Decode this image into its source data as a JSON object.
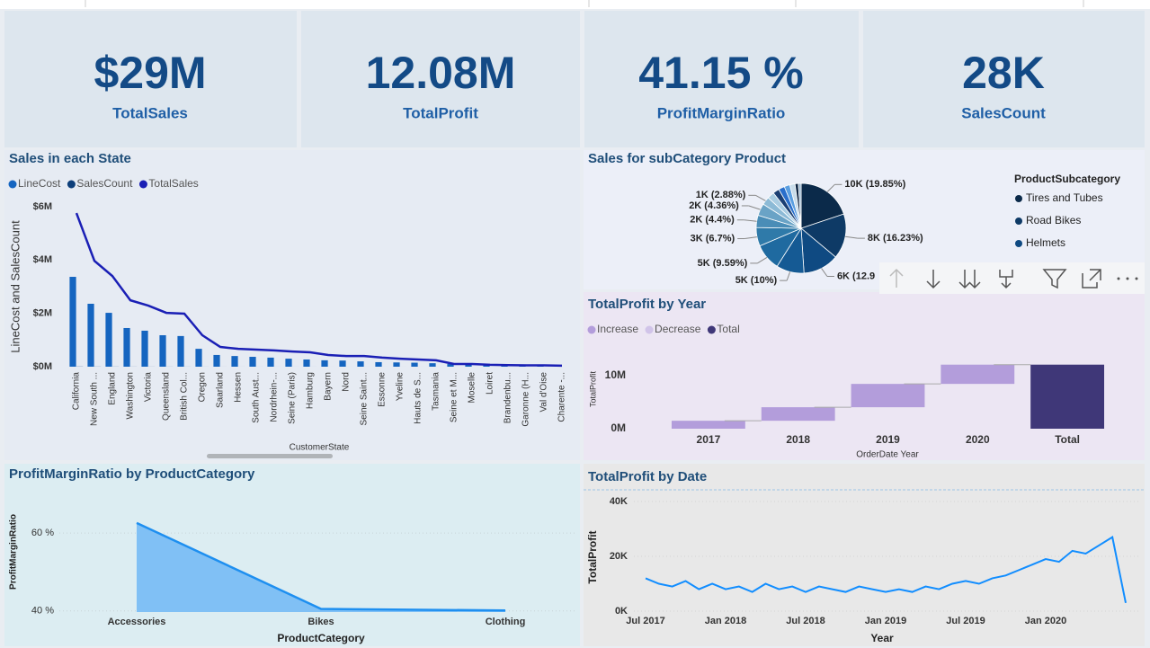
{
  "cards": [
    {
      "value": "$29M",
      "label": "TotalSales"
    },
    {
      "value": "12.08M",
      "label": "TotalProfit"
    },
    {
      "value": "41.15 %",
      "label": "ProfitMarginRatio"
    },
    {
      "value": "28K",
      "label": "SalesCount"
    }
  ],
  "chart_data": [
    {
      "type": "combo",
      "title": "Sales in each State",
      "y_title": "LineCost and SalesCount",
      "x_title": "CustomerState",
      "categories": [
        "California",
        "New South ...",
        "England",
        "Washington",
        "Victoria",
        "Queensland",
        "British Col...",
        "Oregon",
        "Saarland",
        "Hessen",
        "South Aust...",
        "Nordrhein-...",
        "Seine (Paris)",
        "Hamburg",
        "Bayern",
        "Nord",
        "Seine Saint...",
        "Essonne",
        "Yveline",
        "Hauts de S...",
        "Tasmania",
        "Seine et M...",
        "Moselle",
        "Loiret",
        "Brandenbu...",
        "Garonne (H...",
        "Val d'Oise",
        "Charente -..."
      ],
      "series": [
        {
          "name": "LineCost",
          "color": "#1565c0",
          "kind": "bar",
          "values": [
            3370000,
            2360000,
            2020000,
            1450000,
            1350000,
            1180000,
            1150000,
            670000,
            440000,
            400000,
            370000,
            340000,
            300000,
            270000,
            240000,
            230000,
            200000,
            170000,
            160000,
            150000,
            130000,
            100000,
            70000,
            60000,
            50000,
            40000,
            40000,
            30000
          ]
        },
        {
          "name": "SalesCount",
          "color": "#0d3f7a",
          "kind": "bar",
          "values": [
            5560,
            3830,
            3280,
            2400,
            2210,
            1950,
            1920,
            1140,
            710,
            650,
            620,
            590,
            550,
            520,
            420,
            390,
            390,
            330,
            290,
            260,
            230,
            100,
            100,
            70,
            60,
            50,
            50,
            40
          ]
        },
        {
          "name": "TotalSales",
          "color": "#1a1fb5",
          "kind": "line",
          "values": [
            5760000,
            3970000,
            3400000,
            2490000,
            2290000,
            2020000,
            1990000,
            1180000,
            740000,
            670000,
            640000,
            610000,
            570000,
            540000,
            440000,
            400000,
            400000,
            340000,
            300000,
            270000,
            240000,
            100000,
            100000,
            70000,
            60000,
            50000,
            50000,
            40000
          ]
        }
      ],
      "ylim": [
        0,
        6000000
      ],
      "yticks": [
        {
          "value": 0,
          "label": "$0M"
        },
        {
          "value": 2000000,
          "label": "$2M"
        },
        {
          "value": 4000000,
          "label": "$4M"
        },
        {
          "value": 6000000,
          "label": "$6M"
        }
      ],
      "grid": false
    },
    {
      "type": "pie",
      "title": "Sales for subCategory Product",
      "values": [
        19.85,
        16.23,
        12.9,
        10,
        9.59,
        6.7,
        4.4,
        4.36,
        2.88,
        2.5,
        2.3,
        2.2,
        2.0,
        1.9,
        1.2,
        0.99
      ],
      "value_labels": [
        "10K (19.85%)",
        "8K (16.23%)",
        "6K (12.9",
        "5K (10%)",
        "5K (9.59%)",
        "3K (6.7%)",
        "2K (4.4%)",
        "2K (4.36%)",
        "1K (2.88%)",
        null,
        null,
        null,
        null,
        null,
        null,
        null
      ],
      "colors": [
        "#0b2a4a",
        "#0e3a66",
        "#0f4a82",
        "#155a94",
        "#1f6aa0",
        "#2f7aa9",
        "#4a8db7",
        "#6aa3c6",
        "#8cbad6",
        "#aacde2",
        "#1b3f73",
        "#2a6fcb",
        "#5a9ee0",
        "#c8dcea",
        "#0a2240",
        "#9ab7d0"
      ],
      "legend_title": "ProductSubcategory",
      "legend": [
        {
          "name": "Tires and Tubes",
          "color": "#0b2a4a"
        },
        {
          "name": "Road Bikes",
          "color": "#0e3a66"
        },
        {
          "name": "Helmets",
          "color": "#0f4a82"
        }
      ]
    },
    {
      "type": "waterfall",
      "title": "TotalProfit by Year",
      "y_title": "TotalProfit",
      "x_title": "OrderDate Year",
      "categories": [
        "2017",
        "2018",
        "2019",
        "2020",
        "Total"
      ],
      "values": [
        1500000,
        2550000,
        4400000,
        3630000,
        12080000
      ],
      "measure": [
        "increase",
        "increase",
        "increase",
        "increase",
        "total"
      ],
      "legend": [
        {
          "name": "Increase",
          "color": "#b39ddb"
        },
        {
          "name": "Decrease",
          "color": "#d1c4e9"
        },
        {
          "name": "Total",
          "color": "#3f3778"
        }
      ],
      "ylim": [
        0,
        14000000
      ],
      "yticks": [
        {
          "value": 0,
          "label": "0M"
        },
        {
          "value": 10000000,
          "label": "10M"
        }
      ]
    },
    {
      "type": "area",
      "title": "ProfitMarginRatio by ProductCategory",
      "y_title": "ProfitMarginRatio",
      "x_title": "ProductCategory",
      "categories": [
        "Accessories",
        "Bikes",
        "Clothing"
      ],
      "values": [
        62.6,
        40.5,
        40.1
      ],
      "color": "#1e8ff0",
      "fill": "#80c0f5",
      "ylim": [
        39.7,
        67.5
      ],
      "yticks": [
        {
          "value": 40,
          "label": "40 %"
        },
        {
          "value": 60,
          "label": "60 %"
        }
      ],
      "grid": true
    },
    {
      "type": "line",
      "title": "TotalProfit by Date",
      "y_title": "TotalProfit",
      "x_title": "Year",
      "color": "#118dff",
      "x": [
        "2017-07",
        "2017-08",
        "2017-09",
        "2017-10",
        "2017-11",
        "2017-12",
        "2018-01",
        "2018-02",
        "2018-03",
        "2018-04",
        "2018-05",
        "2018-06",
        "2018-07",
        "2018-08",
        "2018-09",
        "2018-10",
        "2018-11",
        "2018-12",
        "2019-01",
        "2019-02",
        "2019-03",
        "2019-04",
        "2019-05",
        "2019-06",
        "2019-07",
        "2019-08",
        "2019-09",
        "2019-10",
        "2019-11",
        "2019-12",
        "2020-01",
        "2020-02",
        "2020-03",
        "2020-04",
        "2020-05",
        "2020-06",
        "2020-07"
      ],
      "values": [
        12000,
        10000,
        9000,
        11000,
        8000,
        10000,
        8000,
        9000,
        7000,
        10000,
        8000,
        9000,
        7000,
        9000,
        8000,
        7000,
        9000,
        8000,
        7000,
        8000,
        7000,
        9000,
        8000,
        10000,
        11000,
        10000,
        12000,
        13000,
        15000,
        17000,
        19000,
        18000,
        22000,
        21000,
        24000,
        27000,
        3000
      ],
      "xlim": [
        "2017-07",
        "2020-07"
      ],
      "xticks": [
        {
          "value": "2017-07",
          "label": "Jul 2017"
        },
        {
          "value": "2018-01",
          "label": "Jan 2018"
        },
        {
          "value": "2018-07",
          "label": "Jul 2018"
        },
        {
          "value": "2019-01",
          "label": "Jan 2019"
        },
        {
          "value": "2019-07",
          "label": "Jul 2019"
        },
        {
          "value": "2020-01",
          "label": "Jan 2020"
        }
      ],
      "ylim": [
        0,
        44000
      ],
      "yticks": [
        {
          "value": 0,
          "label": "0K"
        },
        {
          "value": 20000,
          "label": "20K"
        },
        {
          "value": 40000,
          "label": "40K"
        }
      ],
      "grid": true
    }
  ]
}
